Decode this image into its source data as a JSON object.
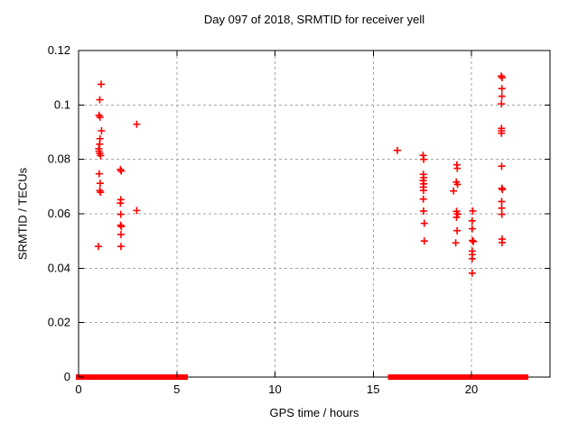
{
  "colors": {
    "background": "#ffffff",
    "axis": "#000000",
    "grid": "#a6a6a6",
    "marker": "#ff0000",
    "text": "#000000"
  },
  "chart_data": {
    "type": "scatter",
    "title": "Day 097 of 2018, SRMTID for receiver yell",
    "xlabel": "GPS time / hours",
    "ylabel": "SRMTID / TECUs",
    "xlim": [
      0,
      24
    ],
    "ylim": [
      0,
      0.12
    ],
    "grid": true,
    "marker": "plus",
    "xticks": [
      {
        "v": 0,
        "label": "0",
        "grid": false
      },
      {
        "v": 5,
        "label": "5",
        "grid": true
      },
      {
        "v": 10,
        "label": "10",
        "grid": true
      },
      {
        "v": 15,
        "label": "15",
        "grid": true
      },
      {
        "v": 20,
        "label": "20",
        "grid": true
      }
    ],
    "yticks": [
      {
        "v": 0,
        "label": "0",
        "grid": false
      },
      {
        "v": 0.02,
        "label": "0.02",
        "grid": true
      },
      {
        "v": 0.04,
        "label": "0.04",
        "grid": true
      },
      {
        "v": 0.06,
        "label": "0.06",
        "grid": true
      },
      {
        "v": 0.08,
        "label": "0.08",
        "grid": true
      },
      {
        "v": 0.1,
        "label": "0.1",
        "grid": true
      },
      {
        "v": 0.12,
        "label": "0.12",
        "grid": false
      }
    ],
    "series": [
      {
        "name": "SRMTID",
        "color": "#ff0000",
        "points": [
          [
            1.15,
            0.1076
          ],
          [
            1.08,
            0.1019
          ],
          [
            1.04,
            0.0962
          ],
          [
            1.09,
            0.0955
          ],
          [
            1.17,
            0.0905
          ],
          [
            1.09,
            0.0876
          ],
          [
            1.07,
            0.0856
          ],
          [
            1.03,
            0.0839
          ],
          [
            1.04,
            0.083
          ],
          [
            1.08,
            0.0822
          ],
          [
            1.12,
            0.0814
          ],
          [
            1.05,
            0.0747
          ],
          [
            1.1,
            0.0712
          ],
          [
            1.08,
            0.0685
          ],
          [
            1.12,
            0.0679
          ],
          [
            1.01,
            0.048
          ],
          [
            2.13,
            0.0763
          ],
          [
            2.17,
            0.0757
          ],
          [
            2.15,
            0.0652
          ],
          [
            2.13,
            0.0639
          ],
          [
            2.15,
            0.0598
          ],
          [
            2.14,
            0.0558
          ],
          [
            2.18,
            0.0553
          ],
          [
            2.16,
            0.0524
          ],
          [
            2.16,
            0.048
          ],
          [
            2.96,
            0.0929
          ],
          [
            2.96,
            0.0612
          ],
          [
            16.23,
            0.0833
          ],
          [
            17.54,
            0.0815
          ],
          [
            17.57,
            0.08
          ],
          [
            17.55,
            0.0745
          ],
          [
            17.57,
            0.0733
          ],
          [
            17.54,
            0.0722
          ],
          [
            17.57,
            0.071
          ],
          [
            17.55,
            0.0698
          ],
          [
            17.56,
            0.0686
          ],
          [
            17.55,
            0.0654
          ],
          [
            17.56,
            0.061
          ],
          [
            17.6,
            0.0565
          ],
          [
            17.6,
            0.05
          ],
          [
            19.26,
            0.078
          ],
          [
            19.28,
            0.0767
          ],
          [
            19.23,
            0.0717
          ],
          [
            19.29,
            0.0708
          ],
          [
            19.09,
            0.0684
          ],
          [
            19.24,
            0.0609
          ],
          [
            19.31,
            0.0599
          ],
          [
            19.24,
            0.0587
          ],
          [
            19.27,
            0.0538
          ],
          [
            19.2,
            0.0493
          ],
          [
            20.07,
            0.061
          ],
          [
            20.04,
            0.0574
          ],
          [
            20.04,
            0.0545
          ],
          [
            20.05,
            0.0502
          ],
          [
            20.1,
            0.0498
          ],
          [
            20.04,
            0.0463
          ],
          [
            20.04,
            0.045
          ],
          [
            20.04,
            0.0435
          ],
          [
            20.04,
            0.0382
          ],
          [
            21.52,
            0.1106
          ],
          [
            21.56,
            0.11
          ],
          [
            21.55,
            0.106
          ],
          [
            21.55,
            0.1032
          ],
          [
            21.53,
            0.1004
          ],
          [
            21.53,
            0.0914
          ],
          [
            21.53,
            0.0905
          ],
          [
            21.53,
            0.0896
          ],
          [
            21.54,
            0.0775
          ],
          [
            21.55,
            0.0694
          ],
          [
            21.58,
            0.0689
          ],
          [
            21.54,
            0.0645
          ],
          [
            21.54,
            0.0621
          ],
          [
            21.55,
            0.0598
          ],
          [
            21.56,
            0.0507
          ],
          [
            21.56,
            0.0494
          ]
        ],
        "zero_line_runs": [
          [
            0.0,
            0.83
          ],
          [
            1.01,
            2.34
          ],
          [
            2.44,
            2.53
          ],
          [
            2.63,
            3.77
          ],
          [
            3.86,
            4.97
          ],
          [
            5.12,
            5.42
          ],
          [
            15.89,
            17.38
          ],
          [
            17.53,
            18.22
          ],
          [
            18.34,
            19.11
          ],
          [
            19.32,
            19.57
          ],
          [
            19.68,
            19.78
          ],
          [
            19.91,
            21.21
          ],
          [
            21.32,
            21.75
          ],
          [
            21.83,
            21.93
          ],
          [
            22.06,
            22.21
          ],
          [
            22.33,
            22.54
          ],
          [
            22.67,
            22.76
          ]
        ]
      }
    ]
  }
}
